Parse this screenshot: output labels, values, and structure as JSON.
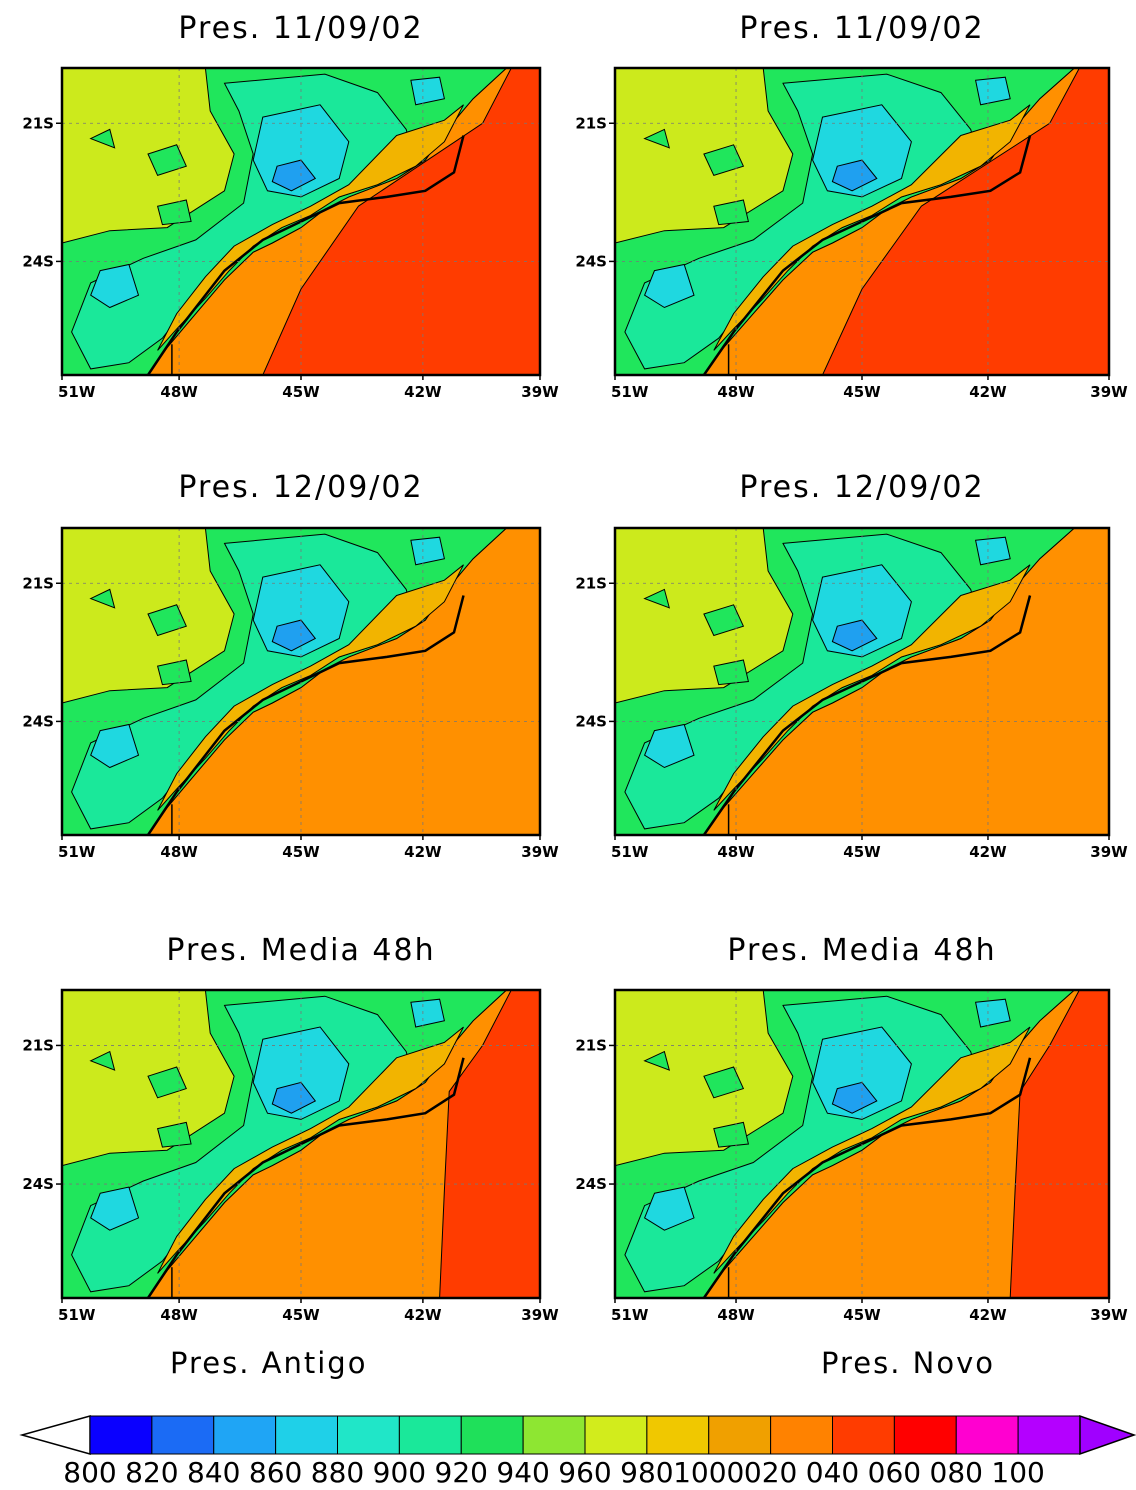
{
  "panels": [
    {
      "title": "Pres. 11/09/02",
      "variant": "A",
      "far_field": "red"
    },
    {
      "title": "Pres. 11/09/02",
      "variant": "B",
      "far_field": "red"
    },
    {
      "title": "Pres. 12/09/02",
      "variant": "A",
      "far_field": "orange"
    },
    {
      "title": "Pres. 12/09/02",
      "variant": "B",
      "far_field": "orange"
    },
    {
      "title": "Pres. Media 48h",
      "variant": "A",
      "far_field": "mixed"
    },
    {
      "title": "Pres. Media 48h",
      "variant": "B",
      "far_field": "mixed"
    }
  ],
  "x_ticks": [
    "51W",
    "48W",
    "45W",
    "42W",
    "39W"
  ],
  "y_ticks": [
    "21S",
    "24S"
  ],
  "column_labels": [
    "Pres. Antigo",
    "Pres. Novo"
  ],
  "colorbar": {
    "colors": [
      "#0a00ff",
      "#1b6bf5",
      "#1fa5f5",
      "#1fd0e8",
      "#20e6c8",
      "#1ae89a",
      "#1fe05a",
      "#8ee632",
      "#d2ec1c",
      "#f0c800",
      "#f0a000",
      "#ff8200",
      "#ff3c00",
      "#ff0000",
      "#ff00d0",
      "#b400ff"
    ],
    "lower_arrow_color": "#ffffff",
    "upper_arrow_color": "#a000ff",
    "labels": [
      "800",
      "820",
      "840",
      "860",
      "880",
      "900",
      "920",
      "940",
      "960",
      "980",
      "1000",
      "020",
      "040",
      "060",
      "080",
      "100"
    ]
  },
  "colors": {
    "yellow_green": "#ccea1c",
    "lime": "#8ee632",
    "green": "#20e65c",
    "sea_green": "#1ae89a",
    "cyan": "#1fd8e0",
    "blue": "#1fa0f0",
    "light_orange": "#f2b400",
    "orange": "#ff9000",
    "red": "#ff3c00",
    "frame": "#000000"
  }
}
